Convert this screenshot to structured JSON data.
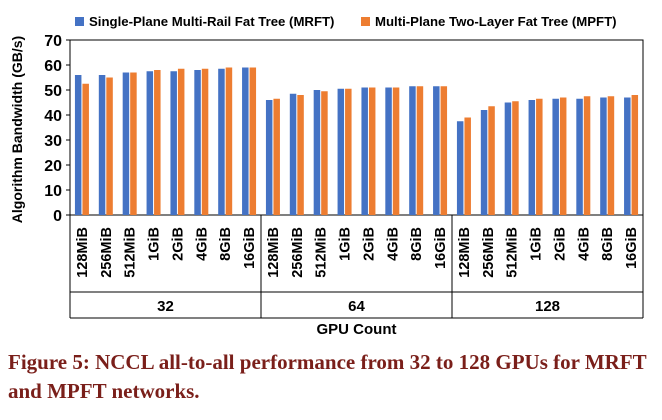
{
  "chart_data": {
    "type": "bar",
    "title": "",
    "ylabel": "Algorithm Bandwidth (GB/s)",
    "xlabel": "GPU Count",
    "ylim": [
      0,
      70
    ],
    "yticks": [
      0,
      10,
      20,
      30,
      40,
      50,
      60,
      70
    ],
    "grid": false,
    "legend_position": "top",
    "groups": [
      {
        "label": "32",
        "categories": [
          "128MiB",
          "256MiB",
          "512MiB",
          "1GiB",
          "2GiB",
          "4GiB",
          "8GiB",
          "16GiB"
        ]
      },
      {
        "label": "64",
        "categories": [
          "128MiB",
          "256MiB",
          "512MiB",
          "1GiB",
          "2GiB",
          "4GiB",
          "8GiB",
          "16GiB"
        ]
      },
      {
        "label": "128",
        "categories": [
          "128MiB",
          "256MiB",
          "512MiB",
          "1GiB",
          "2GiB",
          "4GiB",
          "8GiB",
          "16GiB"
        ]
      }
    ],
    "series": [
      {
        "name": "Single-Plane Multi-Rail Fat Tree (MRFT)",
        "color": "#4472c4",
        "values": [
          56,
          56,
          57,
          57.5,
          57.5,
          58,
          58.5,
          59,
          46,
          48.5,
          50,
          50.5,
          51,
          51,
          51.5,
          51.5,
          37.5,
          42,
          45,
          46,
          46.5,
          46.5,
          47,
          47
        ]
      },
      {
        "name": "Multi-Plane Two-Layer Fat Tree (MPFT)",
        "color": "#ed7d31",
        "values": [
          52.5,
          55,
          57,
          58,
          58.5,
          58.5,
          59,
          59,
          46.5,
          48,
          49.5,
          50.5,
          51,
          51,
          51.5,
          51.5,
          39,
          43.5,
          45.5,
          46.5,
          47,
          47.5,
          47.5,
          48
        ]
      }
    ]
  },
  "caption": "Figure 5: NCCL all-to-all performance from 32 to 128 GPUs for MRFT and MPFT networks."
}
